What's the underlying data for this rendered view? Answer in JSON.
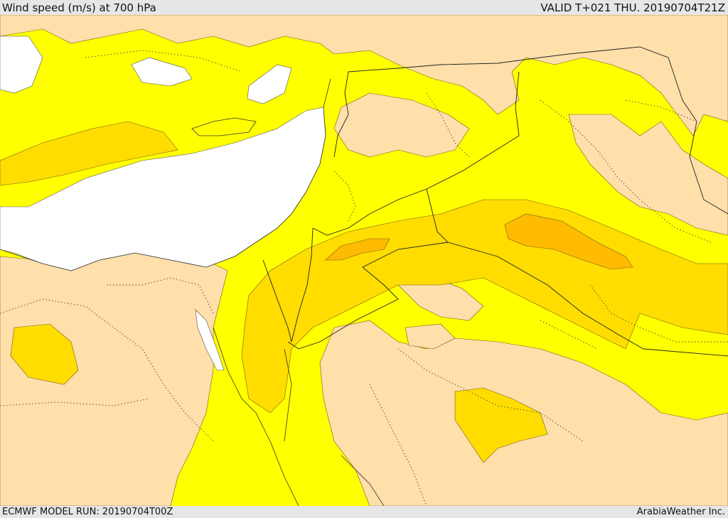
{
  "header": {
    "title": "Wind speed (m/s) at 700 hPa",
    "valid": "VALID T+021 THU. 20190704T21Z"
  },
  "footer": {
    "model_run": "ECMWF MODEL RUN: 20190704T00Z",
    "credit": "ArabiaWeather Inc."
  },
  "colors": {
    "sea_calm": "#ffffff",
    "light": "#ffdfaa",
    "mid": "#ffff00",
    "strong": "#ffdd00",
    "stronger": "#ffbb00"
  }
}
